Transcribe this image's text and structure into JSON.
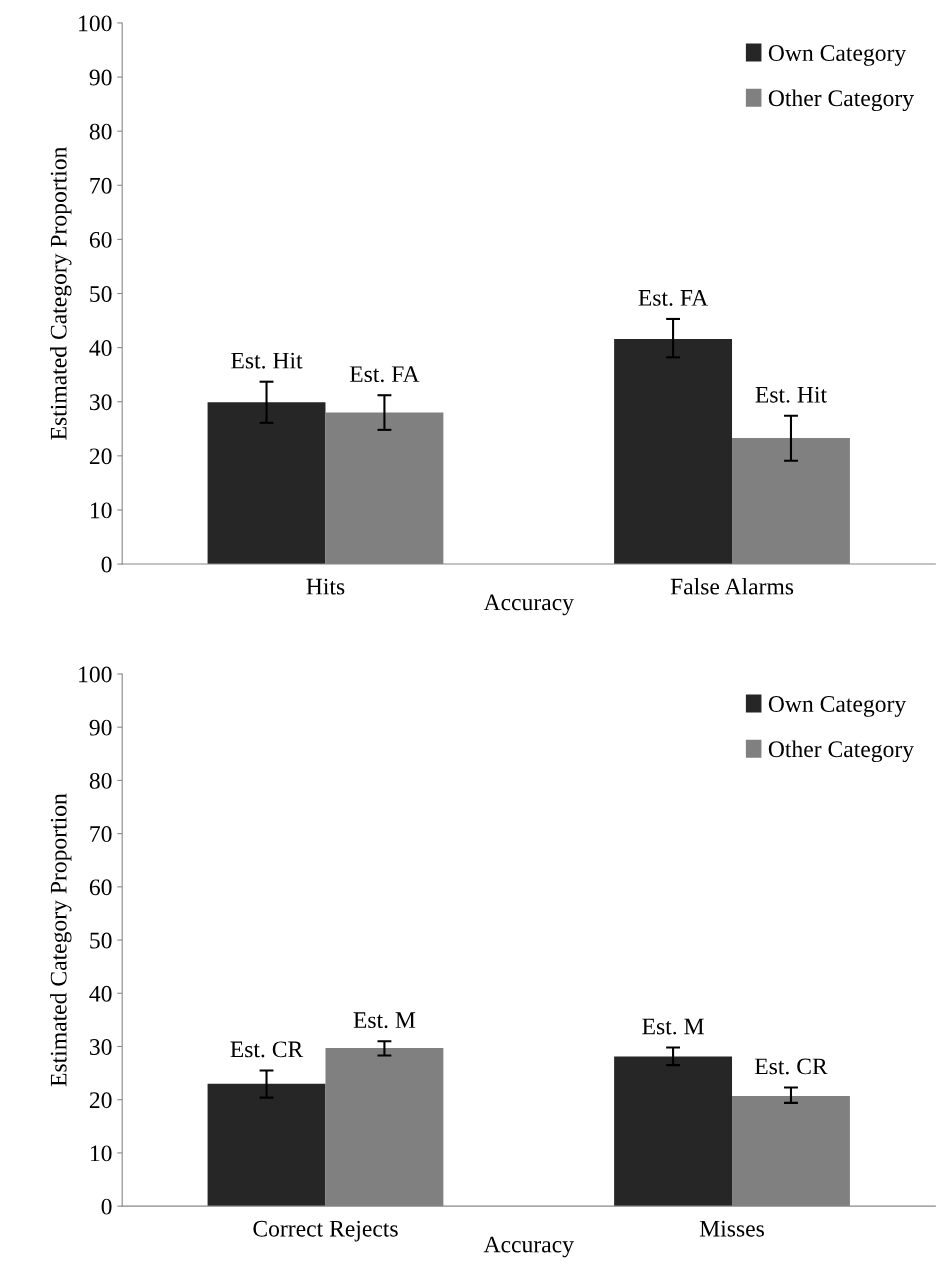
{
  "chart_data": [
    {
      "type": "bar",
      "ylabel": "Estimated Category Proportion",
      "xlabel": "Accuracy",
      "categories": [
        "Hits",
        "False Alarms"
      ],
      "ylim": [
        0,
        100
      ],
      "yticks": [
        0,
        10,
        20,
        30,
        40,
        50,
        60,
        70,
        80,
        90,
        100
      ],
      "grid": false,
      "legend": "top right",
      "series": [
        {
          "name": "Own Category",
          "color": "#262626",
          "values": [
            29.9,
            41.6
          ],
          "errors": [
            [
              26.1,
              33.7
            ],
            [
              38.2,
              45.3
            ]
          ],
          "value_labels": [
            "Est. Hit",
            "Est. FA"
          ]
        },
        {
          "name": "Other Category",
          "color": "#808080",
          "values": [
            28.0,
            23.3
          ],
          "errors": [
            [
              24.8,
              31.2
            ],
            [
              19.1,
              27.4
            ]
          ],
          "value_labels": [
            "Est. FA",
            "Est. Hit"
          ]
        }
      ]
    },
    {
      "type": "bar",
      "ylabel": "Estimated Category Proportion",
      "xlabel": "Accuracy",
      "categories": [
        "Correct Rejects",
        "Misses"
      ],
      "ylim": [
        0,
        100
      ],
      "yticks": [
        0,
        10,
        20,
        30,
        40,
        50,
        60,
        70,
        80,
        90,
        100
      ],
      "grid": false,
      "legend": "top right",
      "series": [
        {
          "name": "Own Category",
          "color": "#262626",
          "values": [
            23.0,
            28.1
          ],
          "errors": [
            [
              20.4,
              25.5
            ],
            [
              26.5,
              29.8
            ]
          ],
          "value_labels": [
            "Est. CR",
            "Est. M"
          ]
        },
        {
          "name": "Other Category",
          "color": "#808080",
          "values": [
            29.7,
            20.7
          ],
          "errors": [
            [
              28.3,
              31.0
            ],
            [
              19.4,
              22.3
            ]
          ],
          "value_labels": [
            "Est. M",
            "Est. CR"
          ]
        }
      ]
    }
  ]
}
